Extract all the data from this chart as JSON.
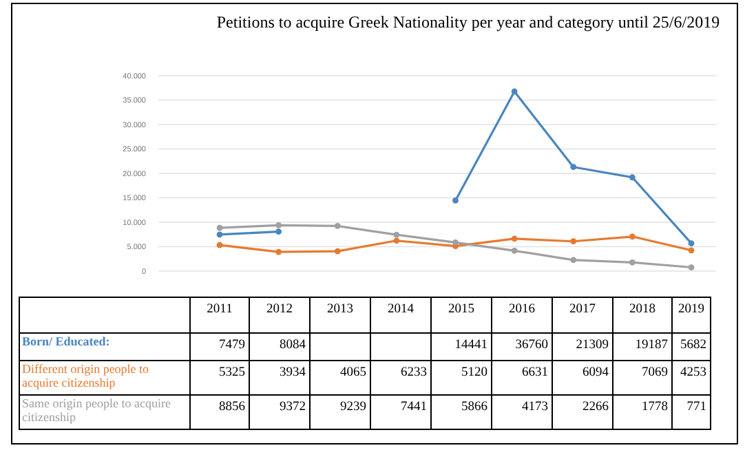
{
  "chart_data": {
    "type": "line",
    "title": "Petitions to acquire Greek Nationality per year and category until 25/6/2019",
    "categories": [
      "2011",
      "2012",
      "2013",
      "2014",
      "2015",
      "2016",
      "2017",
      "2018",
      "2019"
    ],
    "series": [
      {
        "name": "Born/ Educated:",
        "color": "#4a86c0",
        "values": [
          7479,
          8084,
          null,
          null,
          14441,
          36760,
          21309,
          19187,
          5682
        ]
      },
      {
        "name": "Different origin people to acquire citizenship",
        "color": "#e67a2e",
        "values": [
          5325,
          3934,
          4065,
          6233,
          5120,
          6631,
          6094,
          7069,
          4253
        ]
      },
      {
        "name": "Same origin people to acquire citizenship",
        "color": "#a0a0a0",
        "values": [
          8856,
          9372,
          9239,
          7441,
          5866,
          4173,
          2266,
          1778,
          771
        ]
      }
    ],
    "ylim": [
      0,
      40000
    ],
    "yticks": [
      {
        "value": 0,
        "label": "0"
      },
      {
        "value": 5000,
        "label": "5.000"
      },
      {
        "value": 10000,
        "label": "10.000"
      },
      {
        "value": 15000,
        "label": "15.000"
      },
      {
        "value": 20000,
        "label": "20.000"
      },
      {
        "value": 25000,
        "label": "25.000"
      },
      {
        "value": 30000,
        "label": "30.000"
      },
      {
        "value": 35000,
        "label": "35.000"
      },
      {
        "value": 40000,
        "label": "40.000"
      }
    ],
    "grid": "y",
    "legend": false,
    "marker": "circle",
    "line_style": "solid",
    "data_labels": true
  }
}
